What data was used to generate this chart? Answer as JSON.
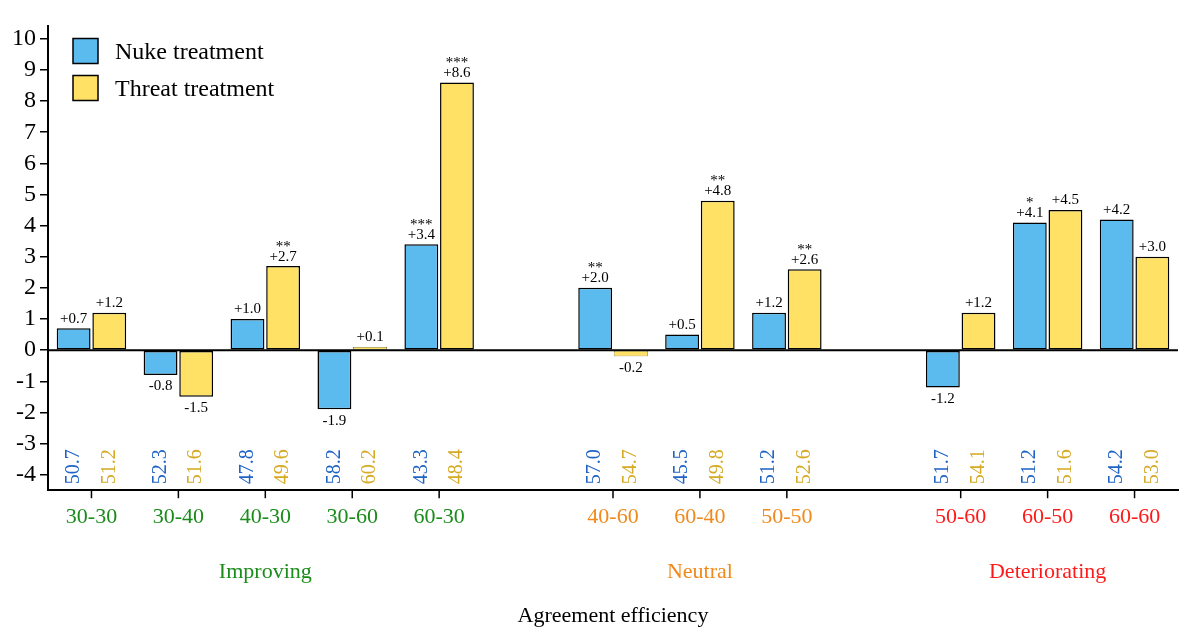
{
  "chart_data": {
    "type": "bar",
    "xlabel": "Agreement efficiency",
    "categories": [
      "30-30",
      "30-40",
      "40-30",
      "30-60",
      "60-30",
      null,
      "40-60",
      "60-40",
      "50-50",
      null,
      "50-60",
      "60-50",
      "60-60"
    ],
    "series": [
      {
        "name": "Nuke treatment",
        "color": "#5bbbef",
        "values": [
          0.7,
          -0.8,
          1.0,
          -1.9,
          3.4,
          null,
          2.0,
          0.5,
          1.2,
          null,
          -1.2,
          4.1,
          4.2
        ],
        "value_labels": [
          "+0.7",
          "-0.8",
          "+1.0",
          "-1.9",
          "+3.4",
          null,
          "+2.0",
          "+0.5",
          "+1.2",
          null,
          "-1.2",
          "+4.1",
          "+4.2"
        ]
      },
      {
        "name": "Threat treatment",
        "color": "#fee165",
        "values": [
          1.2,
          -1.5,
          2.7,
          0.1,
          8.6,
          null,
          -0.2,
          4.8,
          2.6,
          null,
          1.2,
          4.5,
          3.0
        ],
        "value_labels": [
          "+1.2",
          "-1.5",
          "+2.7",
          "+0.1",
          "+8.6",
          null,
          "-0.2",
          "+4.8",
          "+2.6",
          null,
          "+1.2",
          "+4.5",
          "+3.0"
        ]
      }
    ],
    "ylim": [
      -4.5,
      10.4
    ],
    "yticks": [
      -4,
      -3,
      -2,
      -1,
      0,
      1,
      2,
      3,
      4,
      5,
      6,
      7,
      8,
      9,
      10
    ],
    "grid": false,
    "legend": "top left",
    "ref_lines": [
      {
        "axis": "y",
        "value": 0,
        "color": "#000000"
      }
    ],
    "annotations": [
      "50.7",
      "51.2",
      "52.3",
      "51.6",
      "47.8",
      "49.6",
      "58.2",
      "60.2",
      "43.3",
      "48.4",
      "57.0",
      "54.7",
      "45.5",
      "49.8",
      "51.2",
      "52.6",
      "51.7",
      "54.1",
      "51.2",
      "51.6",
      "54.2",
      "53.0",
      "Improving",
      "Neutral",
      "Deteriorating",
      {
        "text": "**",
        "x": "40-30",
        "y": 2.7
      },
      {
        "text": "***",
        "x": "60-30",
        "y": 3.4
      },
      {
        "text": "***",
        "x": "60-30",
        "y": 8.6
      },
      {
        "text": "**",
        "x": "40-60",
        "y": 2.0
      },
      {
        "text": "**",
        "x": "60-40",
        "y": 4.8
      },
      {
        "text": "**",
        "x": "50-50",
        "y": 2.6
      },
      {
        "text": "*",
        "x": "60-50",
        "y": 4.1
      }
    ]
  }
}
